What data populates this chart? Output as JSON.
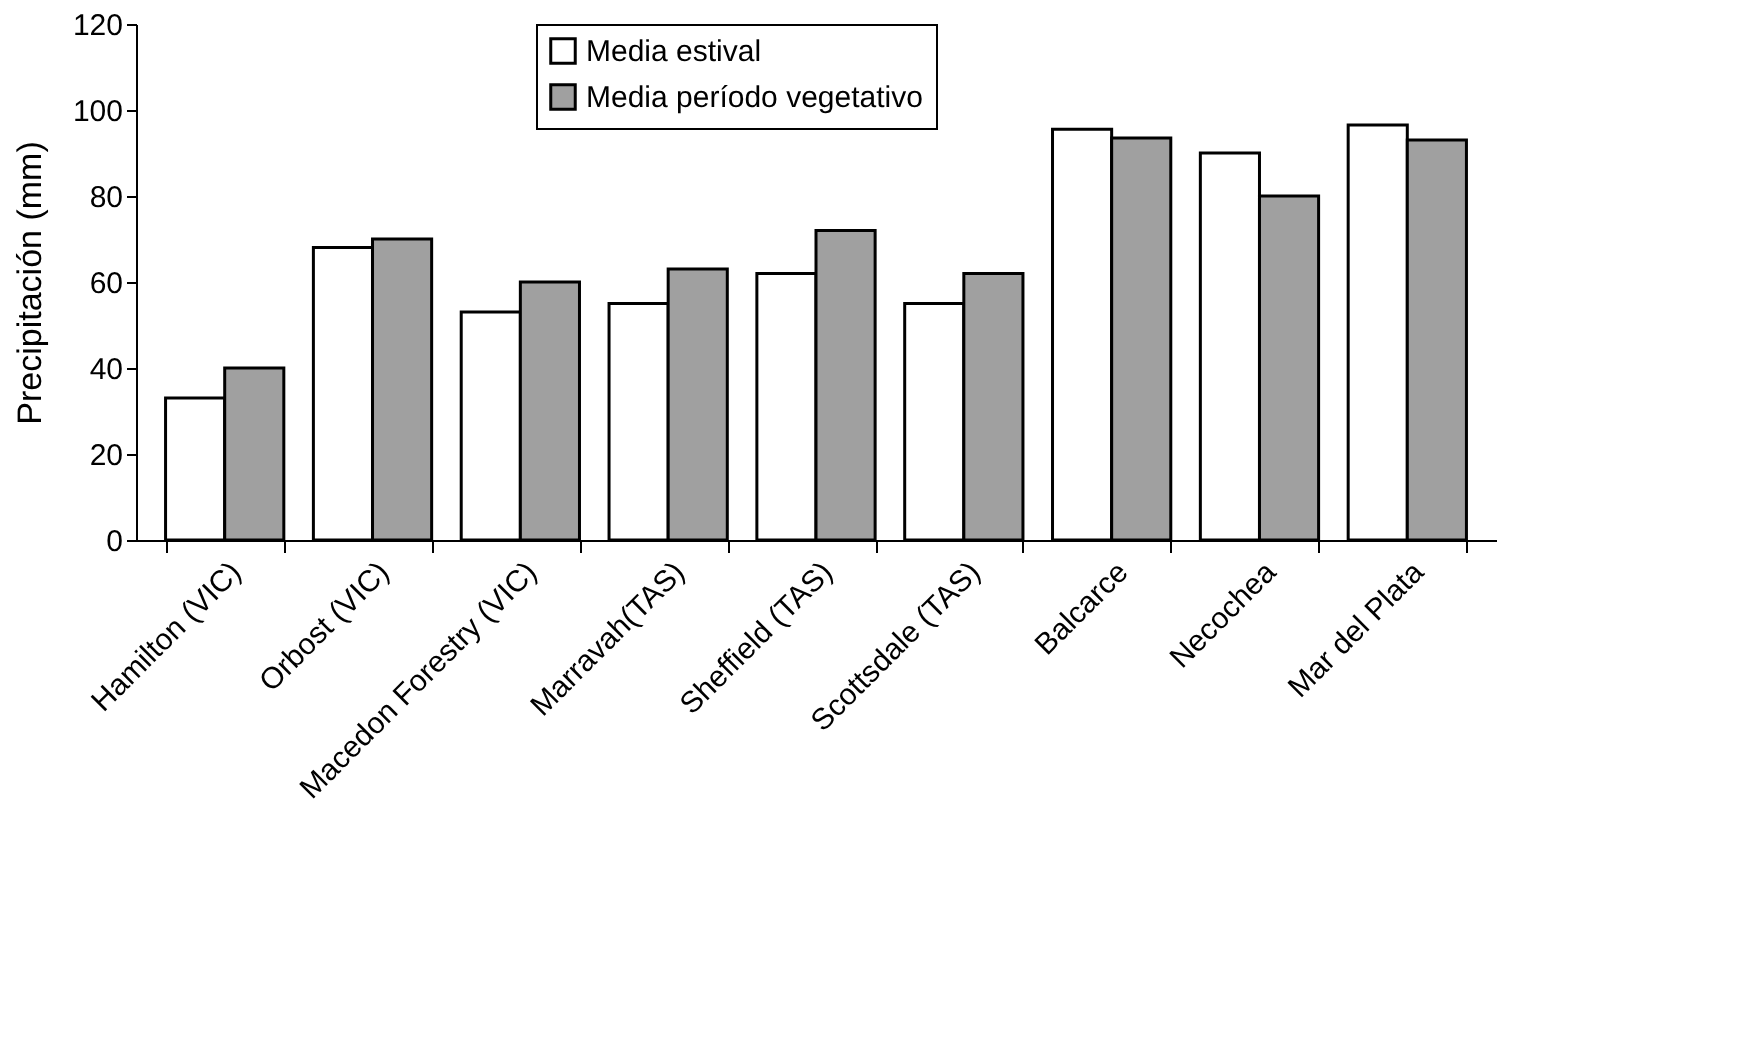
{
  "chart_data": {
    "type": "bar",
    "ylabel": "Precipitación (mm)",
    "categories": [
      "Hamilton (VIC)",
      "Orbost (VIC)",
      "Macedon Forestry (VIC)",
      "Marravah(TAS)",
      "Sheffield (TAS)",
      "Scottsdale (TAS)",
      "Balcarce",
      "Necochea",
      "Mar del Plata"
    ],
    "series": [
      {
        "name": "Media estival",
        "color": "#ffffff",
        "values": [
          33,
          68,
          53,
          55,
          62,
          55,
          95.5,
          90,
          96.5
        ]
      },
      {
        "name": "Media período vegetativo",
        "color": "#a0a0a0",
        "values": [
          40,
          70,
          60,
          63,
          72,
          62,
          93.5,
          80,
          93
        ]
      }
    ],
    "ylim": [
      0,
      120
    ],
    "yticks": [
      0,
      20,
      40,
      60,
      80,
      100,
      120
    ],
    "grid": false,
    "legend": "top"
  }
}
